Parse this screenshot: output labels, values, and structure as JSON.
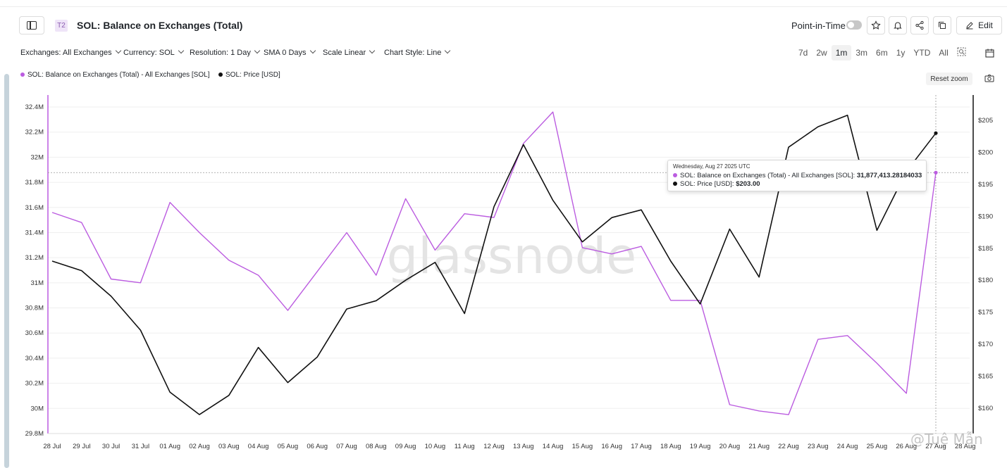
{
  "header": {
    "tier_badge": "T2",
    "title": "SOL: Balance on Exchanges (Total)",
    "point_in_time_label": "Point-in-Time",
    "edit_label": "Edit"
  },
  "filters": [
    {
      "label": "Exchanges: All Exchanges"
    },
    {
      "label": "Currency: SOL"
    },
    {
      "label": "Resolution: 1 Day"
    },
    {
      "label": "SMA 0 Days"
    },
    {
      "label": "Scale Linear"
    },
    {
      "label": "Chart Style: Line"
    }
  ],
  "ranges": [
    "7d",
    "2w",
    "1m",
    "3m",
    "6m",
    "1y",
    "YTD",
    "All"
  ],
  "active_range": "1m",
  "reset_zoom_label": "Reset zoom",
  "watermark": "glassnode",
  "corner_watermark": "@Tuệ Mẫn",
  "tooltip": {
    "date": "Wednesday, Aug 27 2025 UTC",
    "balance_label": "SOL: Balance on Exchanges (Total) - All Exchanges [SOL]: ",
    "balance_value": "31,877,413.28184033",
    "price_label": "SOL: Price [USD]: ",
    "price_value": "$203.00"
  },
  "colors": {
    "balance": "#bb5ce0",
    "price": "#111111"
  },
  "chart_data": {
    "type": "line",
    "categories": [
      "28 Jul",
      "29 Jul",
      "30 Jul",
      "31 Jul",
      "01 Aug",
      "02 Aug",
      "03 Aug",
      "04 Aug",
      "05 Aug",
      "06 Aug",
      "07 Aug",
      "08 Aug",
      "09 Aug",
      "10 Aug",
      "11 Aug",
      "12 Aug",
      "13 Aug",
      "14 Aug",
      "15 Aug",
      "16 Aug",
      "17 Aug",
      "18 Aug",
      "19 Aug",
      "20 Aug",
      "21 Aug",
      "22 Aug",
      "23 Aug",
      "24 Aug",
      "25 Aug",
      "26 Aug",
      "27 Aug",
      "28 Aug"
    ],
    "series": [
      {
        "name": "SOL: Balance on Exchanges (Total) - All Exchanges [SOL]",
        "axis": "left",
        "values": [
          31560000,
          31480000,
          31030000,
          31000000,
          31640000,
          31400000,
          31180000,
          31060000,
          30780000,
          31090000,
          31400000,
          31060000,
          31670000,
          31260000,
          31550000,
          31520000,
          32110000,
          32360000,
          31280000,
          31230000,
          31290000,
          30860000,
          30860000,
          30030000,
          29980000,
          29950000,
          30550000,
          30580000,
          30360000,
          30120000,
          31877413.28,
          null
        ]
      },
      {
        "name": "SOL: Price [USD]",
        "axis": "right",
        "values": [
          183.0,
          181.5,
          177.5,
          172.2,
          162.5,
          159.0,
          162.0,
          169.5,
          164.0,
          168.0,
          175.5,
          176.8,
          180.0,
          182.8,
          174.8,
          191.5,
          201.2,
          192.5,
          186.0,
          189.8,
          191.0,
          183.0,
          176.3,
          188.0,
          180.5,
          200.8,
          204.0,
          205.8,
          187.8,
          197.0,
          203.0,
          null
        ]
      }
    ],
    "y_left": {
      "ticks": [
        "29.8M",
        "30M",
        "30.2M",
        "30.4M",
        "30.6M",
        "30.8M",
        "31M",
        "31.2M",
        "31.4M",
        "31.6M",
        "31.8M",
        "32M",
        "32.2M",
        "32.4M"
      ],
      "min": 29800000,
      "max": 32400000
    },
    "y_right": {
      "ticks": [
        "$160",
        "$165",
        "$170",
        "$175",
        "$180",
        "$185",
        "$190",
        "$195",
        "$200",
        "$205"
      ],
      "min": 158,
      "max": 208
    },
    "grid": true,
    "legend": "top-left"
  },
  "legend": [
    {
      "label": "SOL: Balance on Exchanges (Total) - All Exchanges [SOL]"
    },
    {
      "label": "SOL: Price [USD]"
    }
  ]
}
